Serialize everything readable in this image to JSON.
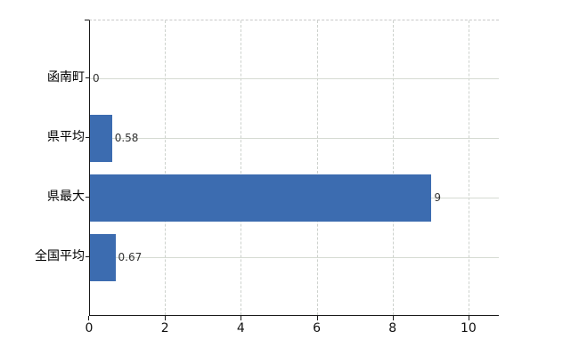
{
  "chart_data": {
    "type": "bar",
    "orientation": "horizontal",
    "title": "",
    "xlabel": "",
    "ylabel": "",
    "categories": [
      "函南町",
      "県平均",
      "県最大",
      "全国平均"
    ],
    "values": [
      0,
      0.58,
      9,
      0.67
    ],
    "value_labels": [
      "0",
      "0.58",
      "9",
      "0.67"
    ],
    "x_tick_labels": [
      "0",
      "2",
      "4",
      "6",
      "8",
      "10"
    ],
    "x_tick_values": [
      0,
      2,
      4,
      6,
      8,
      10
    ],
    "xlim": [
      0,
      10.8
    ],
    "grid": true,
    "legend": false,
    "colors": {
      "bar": "#3c6cb0",
      "axis": "#1a1a1a",
      "grid_horizontal": "#d5dad2",
      "grid_vertical": "#cdd2cd",
      "plot_top_border": "#c9c9c9",
      "category_text": "#000000",
      "value_text": "#333333",
      "background": "#ffffff"
    }
  }
}
